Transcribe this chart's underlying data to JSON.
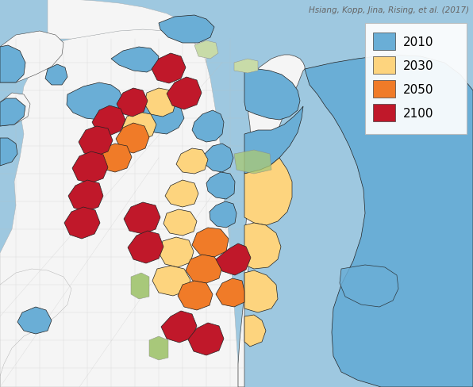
{
  "figsize": [
    5.96,
    4.89
  ],
  "dpi": 100,
  "background_color": "#9ec8e0",
  "ocean_color": "#9ec8e0",
  "land_color": "#f5f5f5",
  "legend_items": [
    {
      "label": "2010",
      "color": "#6aaed6"
    },
    {
      "label": "2030",
      "color": "#fdd47e"
    },
    {
      "label": "2050",
      "color": "#f07b28"
    },
    {
      "label": "2100",
      "color": "#c0182a"
    }
  ],
  "attribution_text": "Hsiang, Kopp, Jina, Rising, et al. (2017)",
  "attribution_fontsize": 7.5,
  "attribution_color": "#666666",
  "legend_fontsize": 11,
  "flood_2010": "#6aaed6",
  "flood_2030": "#fdd47e",
  "flood_2050": "#f07b28",
  "flood_2100": "#c0182a",
  "green_color": "#a8c87a",
  "road_color": "#cccccc",
  "border_color": "#333333",
  "white": "#ffffff"
}
